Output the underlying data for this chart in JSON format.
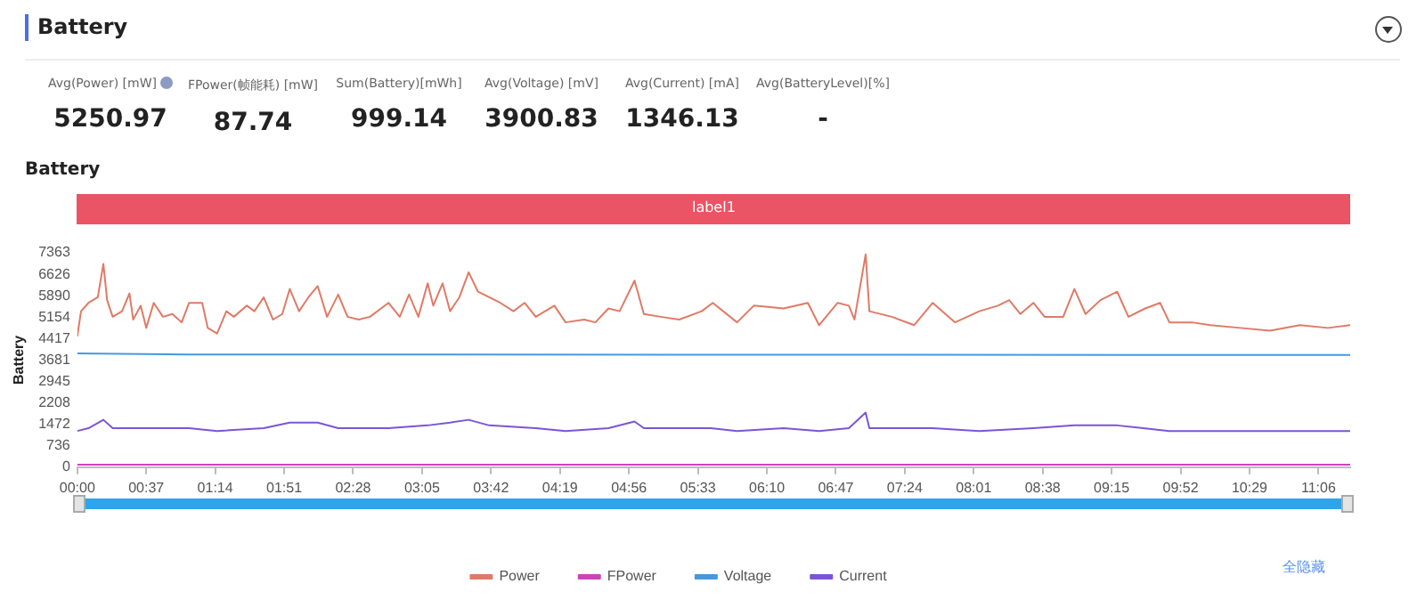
{
  "chart_data": [
    {
      "type": "other",
      "title": "Battery",
      "annotations": [
        "Avg(Power) [mW]",
        "5250.97",
        "FPower(帧能耗) [mW]",
        "87.74",
        "Sum(Battery)[mWh]",
        "999.14",
        "Avg(Voltage) [mV]",
        "3900.83",
        "Avg(Current) [mA]",
        "1346.13",
        "Avg(BatteryLevel)[%]",
        "-"
      ]
    },
    {
      "type": "line",
      "title": "Battery",
      "ylabel": "Battery",
      "xlim": [
        0,
        683
      ],
      "ylim": [
        0,
        7363
      ],
      "xticks": [
        {
          "value": 0,
          "label": "00:00"
        },
        {
          "value": 37,
          "label": "00:37"
        },
        {
          "value": 74,
          "label": "01:14"
        },
        {
          "value": 111,
          "label": "01:51"
        },
        {
          "value": 148,
          "label": "02:28"
        },
        {
          "value": 185,
          "label": "03:05"
        },
        {
          "value": 222,
          "label": "03:42"
        },
        {
          "value": 259,
          "label": "04:19"
        },
        {
          "value": 296,
          "label": "04:56"
        },
        {
          "value": 333,
          "label": "05:33"
        },
        {
          "value": 370,
          "label": "06:10"
        },
        {
          "value": 407,
          "label": "06:47"
        },
        {
          "value": 444,
          "label": "07:24"
        },
        {
          "value": 481,
          "label": "08:01"
        },
        {
          "value": 518,
          "label": "08:38"
        },
        {
          "value": 555,
          "label": "09:15"
        },
        {
          "value": 592,
          "label": "09:52"
        },
        {
          "value": 629,
          "label": "10:29"
        },
        {
          "value": 666,
          "label": "11:06"
        }
      ],
      "yticks": [
        0,
        736,
        1472,
        2208,
        2945,
        3681,
        4417,
        5154,
        5890,
        6626,
        7363
      ],
      "annotations": [
        "label1",
        "全隐藏"
      ],
      "grid": false,
      "legend": "bottom",
      "marker": "none",
      "line_style": "solid",
      "series": [
        {
          "name": "Power",
          "color": "#e07a66",
          "x": [
            0,
            2,
            6,
            11,
            14,
            16,
            19,
            24,
            28,
            30,
            34,
            37,
            41,
            46,
            51,
            56,
            60,
            67,
            70,
            75,
            80,
            84,
            91,
            95,
            100,
            105,
            110,
            114,
            119,
            124,
            129,
            134,
            140,
            145,
            151,
            157,
            167,
            173,
            178,
            183,
            188,
            191,
            196,
            200,
            205,
            210,
            215,
            221,
            227,
            234,
            240,
            246,
            256,
            262,
            272,
            278,
            285,
            291,
            299,
            304,
            313,
            323,
            335,
            341,
            354,
            363,
            379,
            392,
            398,
            408,
            414,
            417,
            423,
            425,
            437,
            449,
            459,
            471,
            484,
            494,
            500,
            506,
            513,
            519,
            529,
            535,
            541,
            549,
            558,
            564,
            573,
            581,
            586,
            598,
            608,
            624,
            640,
            656,
            671,
            683
          ],
          "values": [
            4496,
            5357,
            5644,
            5835,
            6983,
            5739,
            5165,
            5357,
            5969,
            5070,
            5548,
            4783,
            5644,
            5165,
            5261,
            4974,
            5644,
            5644,
            4783,
            4591,
            5357,
            5165,
            5548,
            5357,
            5835,
            5070,
            5261,
            6122,
            5357,
            5835,
            6218,
            5165,
            5931,
            5165,
            5070,
            5165,
            5644,
            5165,
            5931,
            5165,
            6313,
            5548,
            6313,
            5357,
            5835,
            6696,
            6026,
            5835,
            5644,
            5357,
            5644,
            5165,
            5548,
            4974,
            5070,
            4974,
            5452,
            5357,
            6409,
            5261,
            5165,
            5070,
            5357,
            5644,
            4974,
            5548,
            5452,
            5644,
            4878,
            5644,
            5548,
            5070,
            7308,
            5357,
            5165,
            4878,
            5644,
            4974,
            5357,
            5548,
            5739,
            5261,
            5644,
            5165,
            5165,
            6122,
            5261,
            5739,
            6026,
            5165,
            5452,
            5644,
            4974,
            4974,
            4878,
            4783,
            4687,
            4878,
            4783,
            4878
          ]
        },
        {
          "name": "FPower",
          "color": "#cc44bb",
          "x": [
            0,
            683
          ],
          "values": [
            88,
            88
          ]
        },
        {
          "name": "Voltage",
          "color": "#4499e0",
          "x": [
            0,
            60,
            683
          ],
          "values": [
            3910,
            3870,
            3852
          ]
        },
        {
          "name": "Current",
          "color": "#7b55d6",
          "x": [
            0,
            6,
            14,
            19,
            37,
            60,
            75,
            100,
            114,
            129,
            140,
            167,
            188,
            200,
            210,
            221,
            246,
            262,
            285,
            299,
            304,
            340,
            354,
            379,
            398,
            414,
            423,
            425,
            459,
            484,
            513,
            535,
            558,
            586,
            624,
            683
          ],
          "values": [
            1243,
            1339,
            1626,
            1339,
            1339,
            1339,
            1243,
            1339,
            1530,
            1530,
            1339,
            1339,
            1435,
            1530,
            1626,
            1435,
            1339,
            1243,
            1339,
            1569,
            1339,
            1339,
            1243,
            1339,
            1243,
            1339,
            1875,
            1339,
            1339,
            1243,
            1339,
            1435,
            1435,
            1243,
            1243,
            1243
          ]
        }
      ]
    }
  ]
}
